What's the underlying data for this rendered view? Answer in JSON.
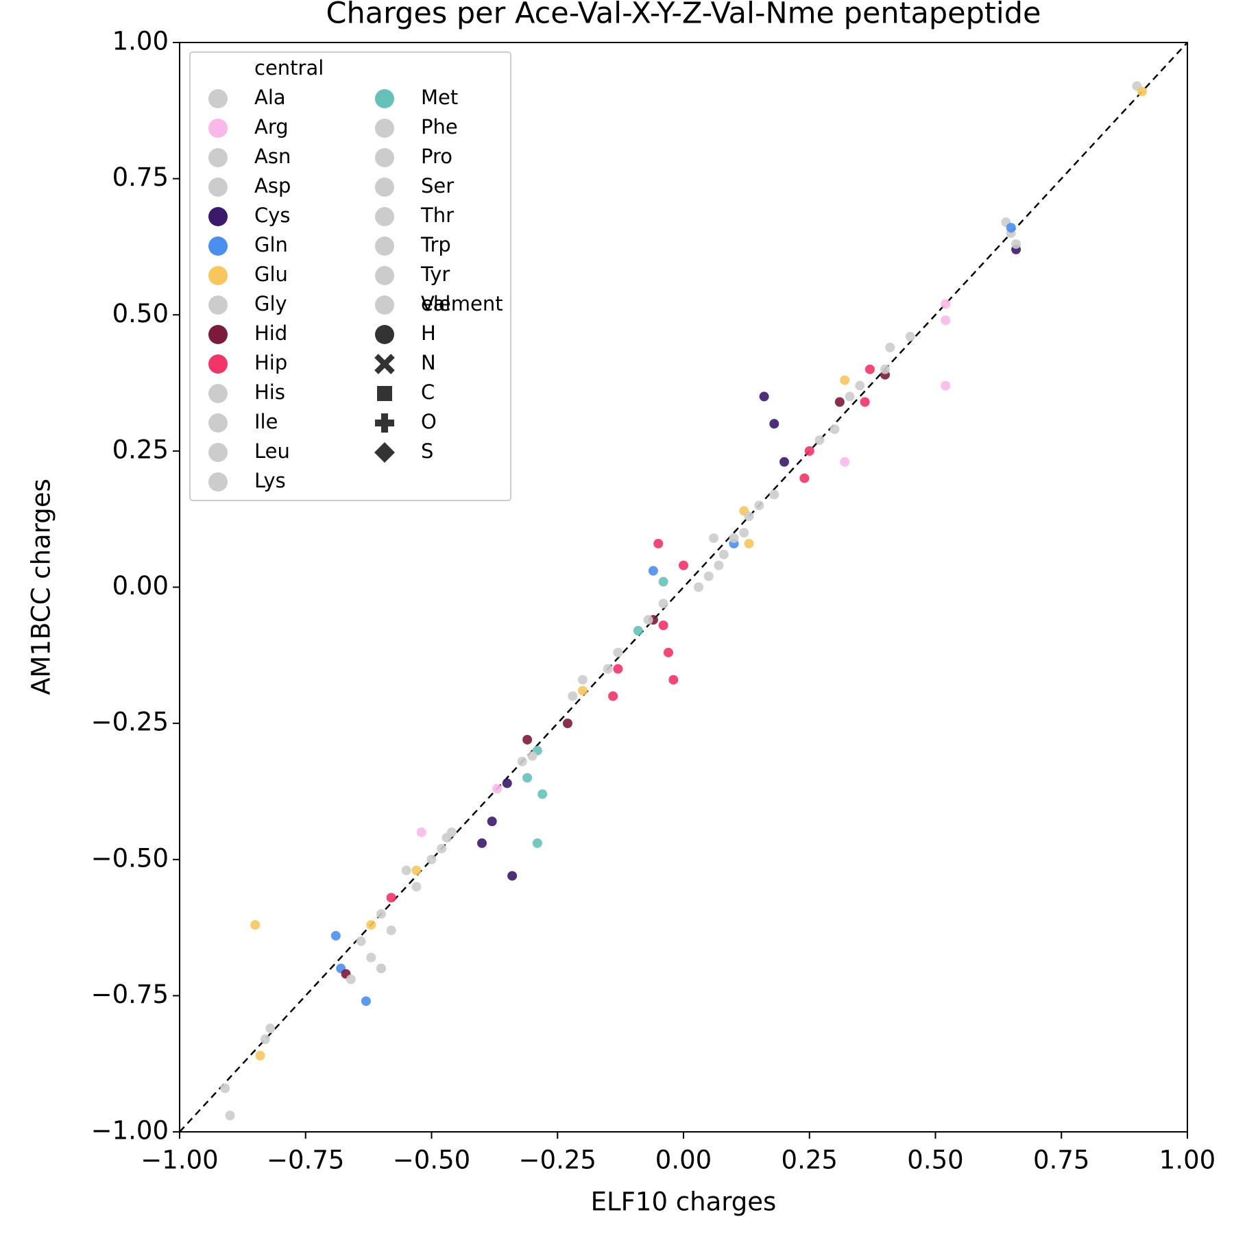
{
  "chart_data": {
    "type": "scatter",
    "title": "Charges per Ace-Val-X-Y-Z-Val-Nme pentapeptide",
    "xlabel": "ELF10 charges",
    "ylabel": "AM1BCC charges",
    "xlim": [
      -1,
      1
    ],
    "ylim": [
      -1,
      1
    ],
    "xticks": [
      {
        "value": -1,
        "label": "−1.00"
      },
      {
        "value": -0.75,
        "label": "−0.75"
      },
      {
        "value": -0.5,
        "label": "−0.50"
      },
      {
        "value": -0.25,
        "label": "−0.25"
      },
      {
        "value": 0,
        "label": "0.00"
      },
      {
        "value": 0.25,
        "label": "0.25"
      },
      {
        "value": 0.5,
        "label": "0.50"
      },
      {
        "value": 0.75,
        "label": "0.75"
      },
      {
        "value": 1,
        "label": "1.00"
      }
    ],
    "yticks": [
      {
        "value": -1,
        "label": "−1.00"
      },
      {
        "value": -0.75,
        "label": "−0.75"
      },
      {
        "value": -0.5,
        "label": "−0.50"
      },
      {
        "value": -0.25,
        "label": "−0.25"
      },
      {
        "value": 0,
        "label": "0.00"
      },
      {
        "value": 0.25,
        "label": "0.25"
      },
      {
        "value": 0.5,
        "label": "0.50"
      },
      {
        "value": 0.75,
        "label": "0.75"
      },
      {
        "value": 1,
        "label": "1.00"
      }
    ],
    "legend_title": "central",
    "legend_corner": "upper left",
    "element_legend": {
      "title": "element",
      "items": [
        "H",
        "N",
        "C",
        "O",
        "S"
      ]
    },
    "series": [
      {
        "name": "Ala",
        "color": "#cccccc",
        "x": [
          -0.91,
          -0.9,
          0.9
        ],
        "y": [
          -0.92,
          -0.97,
          0.92
        ]
      },
      {
        "name": "Arg",
        "color": "#f9b8e8",
        "x": [
          0.52,
          0.52,
          0.52,
          -0.37,
          -0.52,
          -0.6,
          0.32
        ],
        "y": [
          0.52,
          0.49,
          0.37,
          -0.37,
          -0.45,
          -0.7,
          0.23
        ]
      },
      {
        "name": "Asn",
        "color": "#cccccc",
        "x": [
          -0.83,
          -0.82,
          0.65
        ],
        "y": [
          -0.83,
          -0.81,
          0.65
        ]
      },
      {
        "name": "Asp",
        "color": "#cccccc",
        "x": [
          -0.64,
          -0.62,
          0.64
        ],
        "y": [
          -0.65,
          -0.68,
          0.67
        ]
      },
      {
        "name": "Cys",
        "color": "#3b1a6b",
        "x": [
          0.2,
          0.18,
          0.16,
          -0.35,
          -0.38,
          -0.4,
          -0.34,
          0.66
        ],
        "y": [
          0.23,
          0.3,
          0.35,
          -0.36,
          -0.43,
          -0.47,
          -0.53,
          0.62
        ]
      },
      {
        "name": "Gln",
        "color": "#4a8fef",
        "x": [
          -0.69,
          -0.68,
          -0.63,
          0.65,
          0.1,
          -0.06
        ],
        "y": [
          -0.64,
          -0.7,
          -0.76,
          0.66,
          0.08,
          0.03
        ]
      },
      {
        "name": "Glu",
        "color": "#f5c75c",
        "x": [
          -0.84,
          -0.85,
          0.91,
          -0.62,
          -0.53,
          0.12,
          0.13,
          -0.2,
          0.32
        ],
        "y": [
          -0.86,
          -0.62,
          0.91,
          -0.62,
          -0.52,
          0.14,
          0.08,
          -0.19,
          0.38
        ]
      },
      {
        "name": "Gly",
        "color": "#cccccc",
        "x": [
          -0.6,
          -0.58,
          0.66
        ],
        "y": [
          -0.6,
          -0.63,
          0.63
        ]
      },
      {
        "name": "Hid",
        "color": "#7b1a3b",
        "x": [
          0.31,
          0.4,
          -0.23,
          -0.31,
          -0.67,
          -0.06
        ],
        "y": [
          0.34,
          0.39,
          -0.25,
          -0.28,
          -0.71,
          -0.06
        ]
      },
      {
        "name": "Hip",
        "color": "#f23468",
        "x": [
          0.25,
          0.24,
          0.36,
          0.37,
          -0.13,
          -0.14,
          -0.04,
          -0.03,
          -0.02,
          0.0,
          -0.05,
          -0.58
        ],
        "y": [
          0.25,
          0.2,
          0.34,
          0.4,
          -0.15,
          -0.2,
          -0.07,
          -0.12,
          -0.17,
          0.04,
          0.08,
          -0.57
        ]
      },
      {
        "name": "His",
        "color": "#cccccc",
        "x": [
          -0.55,
          -0.53,
          0.45
        ],
        "y": [
          -0.52,
          -0.55,
          0.46
        ]
      },
      {
        "name": "Ile",
        "color": "#cccccc",
        "x": [
          -0.47,
          -0.46,
          0.41
        ],
        "y": [
          -0.46,
          -0.45,
          0.44
        ]
      },
      {
        "name": "Leu",
        "color": "#cccccc",
        "x": [
          -0.22,
          -0.2,
          0.4
        ],
        "y": [
          -0.2,
          -0.17,
          0.4
        ]
      },
      {
        "name": "Lys",
        "color": "#cccccc",
        "x": [
          -0.15,
          -0.13,
          0.35
        ],
        "y": [
          -0.15,
          -0.12,
          0.37
        ]
      },
      {
        "name": "Met",
        "color": "#66c2b8",
        "x": [
          -0.29,
          -0.31,
          -0.28,
          -0.29,
          -0.04,
          -0.09
        ],
        "y": [
          -0.3,
          -0.35,
          -0.38,
          -0.47,
          0.01,
          -0.08
        ]
      },
      {
        "name": "Phe",
        "color": "#cccccc",
        "x": [
          -0.07,
          -0.04,
          0.33
        ],
        "y": [
          -0.06,
          -0.03,
          0.35
        ]
      },
      {
        "name": "Pro",
        "color": "#cccccc",
        "x": [
          0.03,
          0.05,
          0.3
        ],
        "y": [
          0.0,
          0.02,
          0.29
        ]
      },
      {
        "name": "Ser",
        "color": "#cccccc",
        "x": [
          0.08,
          0.1,
          0.27
        ],
        "y": [
          0.06,
          0.09,
          0.27
        ]
      },
      {
        "name": "Thr",
        "color": "#cccccc",
        "x": [
          0.13,
          0.15,
          0.18
        ],
        "y": [
          0.13,
          0.15,
          0.17
        ]
      },
      {
        "name": "Trp",
        "color": "#cccccc",
        "x": [
          -0.32,
          -0.3,
          0.12
        ],
        "y": [
          -0.32,
          -0.31,
          0.1
        ]
      },
      {
        "name": "Tyr",
        "color": "#cccccc",
        "x": [
          -0.66,
          -0.6,
          0.07
        ],
        "y": [
          -0.72,
          -0.7,
          0.04
        ]
      },
      {
        "name": "Val",
        "color": "#cccccc",
        "x": [
          -0.5,
          -0.48,
          0.06
        ],
        "y": [
          -0.5,
          -0.48,
          0.09
        ]
      }
    ]
  }
}
